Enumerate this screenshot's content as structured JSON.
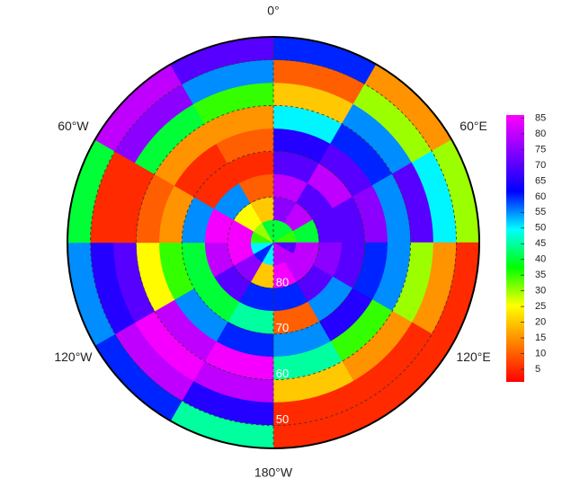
{
  "map": {
    "type": "polar_heatmap",
    "center_lat": 90,
    "edge_lat": 45,
    "lat_edges": [
      90,
      85,
      80,
      75,
      70,
      65,
      60,
      55,
      50,
      45
    ],
    "lon_edges": [
      0,
      30,
      60,
      90,
      120,
      150,
      180,
      210,
      240,
      270,
      300,
      330,
      360
    ],
    "grid": [
      [
        40,
        75,
        80,
        70,
        65,
        50,
        20,
        10,
        60
      ],
      [
        40,
        80,
        70,
        80,
        70,
        60,
        55,
        30,
        15
      ],
      [
        35,
        40,
        70,
        70,
        75,
        55,
        70,
        50,
        30
      ],
      [
        70,
        80,
        75,
        70,
        60,
        55,
        30,
        15,
        5
      ],
      [
        80,
        80,
        70,
        55,
        65,
        35,
        15,
        5,
        5
      ],
      [
        80,
        85,
        60,
        10,
        55,
        45,
        20,
        5,
        5
      ],
      [
        50,
        20,
        60,
        45,
        60,
        85,
        80,
        65,
        45
      ],
      [
        60,
        75,
        70,
        40,
        55,
        80,
        85,
        80,
        60
      ],
      [
        50,
        85,
        80,
        40,
        35,
        25,
        70,
        65,
        55
      ],
      [
        35,
        85,
        85,
        55,
        15,
        10,
        5,
        5,
        40
      ],
      [
        30,
        25,
        55,
        5,
        5,
        15,
        40,
        75,
        80
      ],
      [
        40,
        20,
        10,
        5,
        10,
        15,
        35,
        55,
        70
      ]
    ],
    "lat_rings": [
      80,
      70,
      60,
      50
    ],
    "meridians": [
      0,
      180
    ],
    "lon_labels": [
      {
        "value": 0,
        "label": "0°"
      },
      {
        "value": 60,
        "label": "60°E"
      },
      {
        "value": 120,
        "label": "120°E"
      },
      {
        "value": 180,
        "label": "180°W"
      },
      {
        "value": 240,
        "label": "120°W"
      },
      {
        "value": 300,
        "label": "60°W"
      }
    ],
    "colormap": [
      "#ff0000",
      "#ff8000",
      "#ffff00",
      "#00ff00",
      "#00ffff",
      "#0000ff",
      "#8000ff",
      "#ff00ff"
    ],
    "clim": [
      1,
      86
    ],
    "cticks": [
      5,
      10,
      15,
      20,
      25,
      30,
      35,
      40,
      45,
      50,
      55,
      60,
      65,
      70,
      75,
      80,
      85
    ]
  }
}
